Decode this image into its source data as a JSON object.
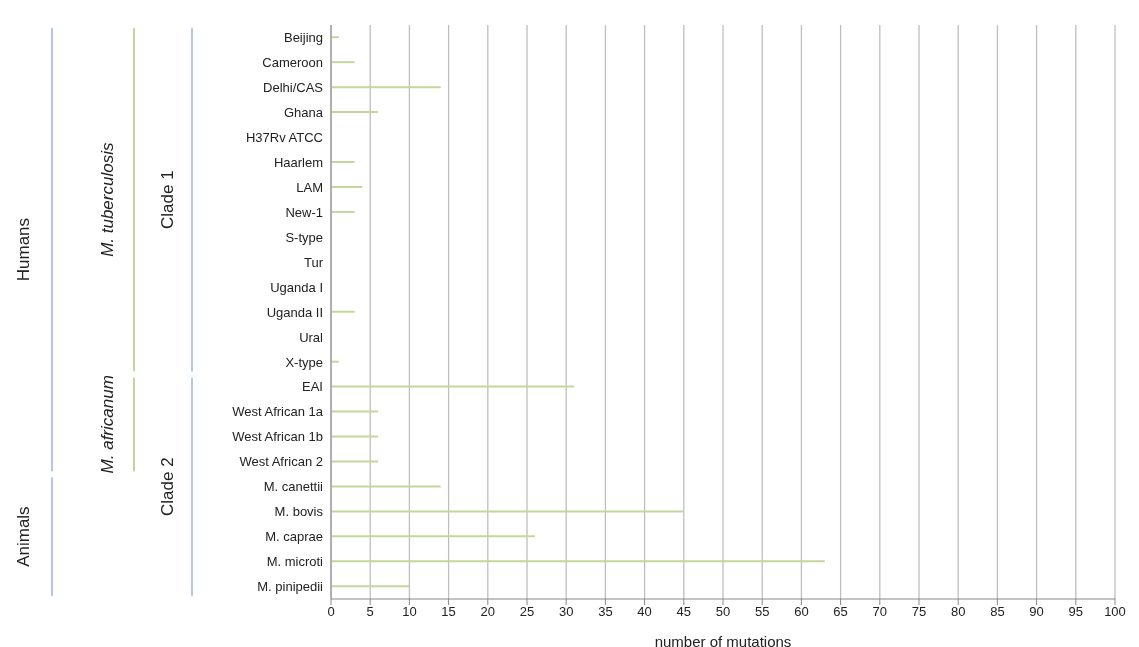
{
  "chart_data": {
    "type": "bar",
    "orientation": "horizontal",
    "xlabel": "number of mutations",
    "categories": [
      "Beijing",
      "Cameroon",
      "Delhi/CAS",
      "Ghana",
      "H37Rv ATCC",
      "Haarlem",
      "LAM",
      "New-1",
      "S-type",
      "Tur",
      "Uganda I",
      "Uganda II",
      "Ural",
      "X-type",
      "EAI",
      "West African 1a",
      "West African 1b",
      "West African 2",
      "M. canettii",
      "M. bovis",
      "M. caprae",
      "M. microti",
      "M. pinipedii"
    ],
    "values": [
      1,
      3,
      14,
      6,
      0,
      3,
      4,
      3,
      0,
      0,
      0,
      3,
      0,
      1,
      31,
      6,
      6,
      6,
      14,
      45,
      26,
      63,
      10
    ],
    "color": "#c3d69b",
    "xlim": [
      0,
      100
    ],
    "xticks": [
      0,
      5,
      10,
      15,
      20,
      25,
      30,
      35,
      40,
      45,
      50,
      55,
      60,
      65,
      70,
      75,
      80,
      85,
      90,
      95,
      100
    ],
    "grid": "x",
    "annotations": [
      "Humans",
      "Animals",
      "M. tuberculosis",
      "M. africanum",
      "Clade 1",
      "Clade 2"
    ]
  }
}
